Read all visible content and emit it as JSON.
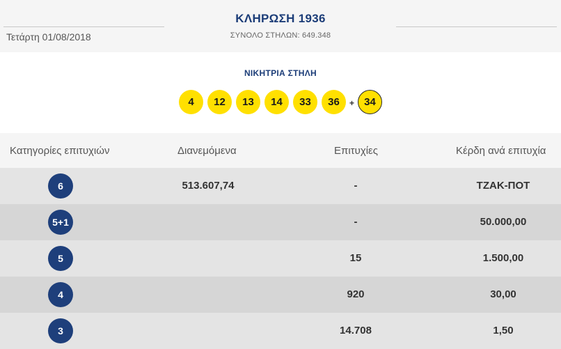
{
  "header": {
    "date": "Τετάρτη 01/08/2018",
    "title": "ΚΛΗΡΩΣΗ 1936",
    "total_columns": "ΣΥΝΟΛΟ ΣΤΗΛΩΝ: 649.348"
  },
  "winning": {
    "label": "ΝΙΚΗΤΡΙΑ ΣΤΗΛΗ",
    "numbers": [
      "4",
      "12",
      "13",
      "14",
      "33",
      "36"
    ],
    "plus": "+",
    "bonus": "34"
  },
  "table": {
    "headers": {
      "categories": "Κατηγορίες επιτυχιών",
      "distributed": "Διανεμόμενα",
      "wins": "Επιτυχίες",
      "prize": "Κέρδη ανά επιτυχία"
    },
    "rows": [
      {
        "category": "6",
        "distributed": "513.607,74",
        "wins": "-",
        "prize": "ΤΖΑΚ-ΠΟΤ"
      },
      {
        "category": "5+1",
        "distributed": "",
        "wins": "-",
        "prize": "50.000,00"
      },
      {
        "category": "5",
        "distributed": "",
        "wins": "15",
        "prize": "1.500,00"
      },
      {
        "category": "4",
        "distributed": "",
        "wins": "920",
        "prize": "30,00"
      },
      {
        "category": "3",
        "distributed": "",
        "wins": "14.708",
        "prize": "1,50"
      }
    ]
  },
  "colors": {
    "accent": "#1c3d78",
    "ball": "#ffe000",
    "category_badge": "#1e3f7b"
  }
}
